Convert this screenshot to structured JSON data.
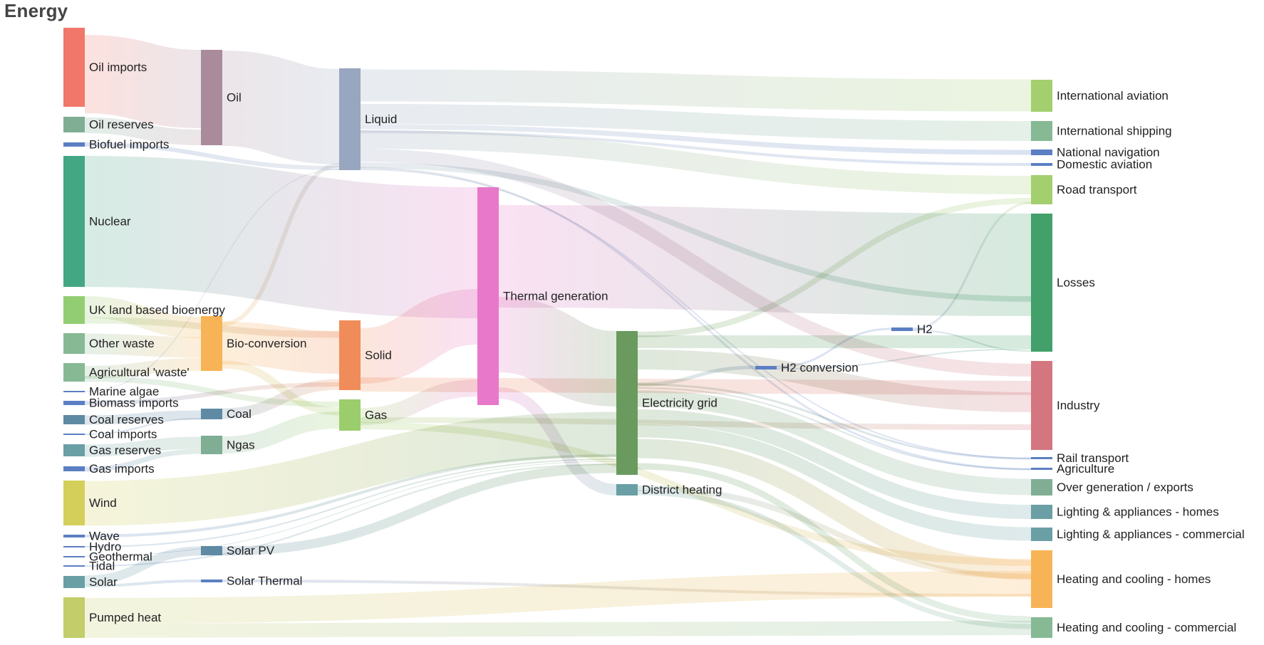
{
  "title": "Energy",
  "nodes": [
    {
      "id": "oil_imports",
      "label": "Oil imports",
      "color": "#f0776a"
    },
    {
      "id": "oil_reserves",
      "label": "Oil reserves",
      "color": "#7fae95"
    },
    {
      "id": "biofuel_imports",
      "label": "Biofuel imports",
      "color": "#5b7fc2"
    },
    {
      "id": "nuclear",
      "label": "Nuclear",
      "color": "#43a784"
    },
    {
      "id": "uk_land_bio",
      "label": "UK land based bioenergy",
      "color": "#93cd73"
    },
    {
      "id": "other_waste",
      "label": "Other waste",
      "color": "#86b994"
    },
    {
      "id": "agri_waste",
      "label": "Agricultural 'waste'",
      "color": "#86b994"
    },
    {
      "id": "marine_algae",
      "label": "Marine algae",
      "color": "#5b7fc2"
    },
    {
      "id": "biomass_imports",
      "label": "Biomass imports",
      "color": "#5b7fc2"
    },
    {
      "id": "coal_reserves",
      "label": "Coal reserves",
      "color": "#5f8aa3"
    },
    {
      "id": "coal_imports",
      "label": "Coal imports",
      "color": "#5b7fc2"
    },
    {
      "id": "gas_reserves",
      "label": "Gas reserves",
      "color": "#6a9fa5"
    },
    {
      "id": "gas_imports",
      "label": "Gas imports",
      "color": "#5b7fc2"
    },
    {
      "id": "wind",
      "label": "Wind",
      "color": "#d4cf5a"
    },
    {
      "id": "wave",
      "label": "Wave",
      "color": "#5b7fc2"
    },
    {
      "id": "hydro",
      "label": "Hydro",
      "color": "#5b7fc2"
    },
    {
      "id": "geothermal",
      "label": "Geothermal",
      "color": "#5b7fc2"
    },
    {
      "id": "tidal",
      "label": "Tidal",
      "color": "#5b7fc2"
    },
    {
      "id": "solar",
      "label": "Solar",
      "color": "#6a9fa5"
    },
    {
      "id": "pumped_heat",
      "label": "Pumped heat",
      "color": "#c3cd6a"
    },
    {
      "id": "oil",
      "label": "Oil",
      "color": "#a98b9c"
    },
    {
      "id": "bio_conversion",
      "label": "Bio-conversion",
      "color": "#f7b456"
    },
    {
      "id": "coal",
      "label": "Coal",
      "color": "#5f8aa3"
    },
    {
      "id": "ngas",
      "label": "Ngas",
      "color": "#7fae95"
    },
    {
      "id": "solar_pv",
      "label": "Solar PV",
      "color": "#5f8aa3"
    },
    {
      "id": "solar_thermal",
      "label": "Solar Thermal",
      "color": "#5b7fc2"
    },
    {
      "id": "liquid",
      "label": "Liquid",
      "color": "#98a6bf"
    },
    {
      "id": "solid",
      "label": "Solid",
      "color": "#f08c59"
    },
    {
      "id": "gas",
      "label": "Gas",
      "color": "#9ccd6c"
    },
    {
      "id": "thermal_generation",
      "label": "Thermal generation",
      "color": "#e878c9"
    },
    {
      "id": "electricity_grid",
      "label": "Electricity grid",
      "color": "#6a9a5e"
    },
    {
      "id": "district_heating",
      "label": "District heating",
      "color": "#6a9fa5"
    },
    {
      "id": "h2_conversion",
      "label": "H2 conversion",
      "color": "#5b7fc2"
    },
    {
      "id": "h2",
      "label": "H2",
      "color": "#5b7fc2"
    },
    {
      "id": "intl_aviation",
      "label": "International aviation",
      "color": "#a3cf6e"
    },
    {
      "id": "intl_shipping",
      "label": "International shipping",
      "color": "#86b994"
    },
    {
      "id": "national_navigation",
      "label": "National navigation",
      "color": "#5b7fc2"
    },
    {
      "id": "domestic_aviation",
      "label": "Domestic aviation",
      "color": "#5b7fc2"
    },
    {
      "id": "road_transport",
      "label": "Road transport",
      "color": "#a3cf6e"
    },
    {
      "id": "losses",
      "label": "Losses",
      "color": "#43a06a"
    },
    {
      "id": "industry",
      "label": "Industry",
      "color": "#d3767f"
    },
    {
      "id": "rail_transport",
      "label": "Rail transport",
      "color": "#5b7fc2"
    },
    {
      "id": "agriculture",
      "label": "Agriculture",
      "color": "#5b7fc2"
    },
    {
      "id": "over_generation",
      "label": "Over generation / exports",
      "color": "#7fae95"
    },
    {
      "id": "lighting_homes",
      "label": "Lighting & appliances - homes",
      "color": "#6a9fa5"
    },
    {
      "id": "lighting_commercial",
      "label": "Lighting & appliances - commercial",
      "color": "#6a9fa5"
    },
    {
      "id": "heating_homes",
      "label": "Heating and cooling - homes",
      "color": "#f7b456"
    },
    {
      "id": "heating_commercial",
      "label": "Heating and cooling - commercial",
      "color": "#86b994"
    }
  ]
}
